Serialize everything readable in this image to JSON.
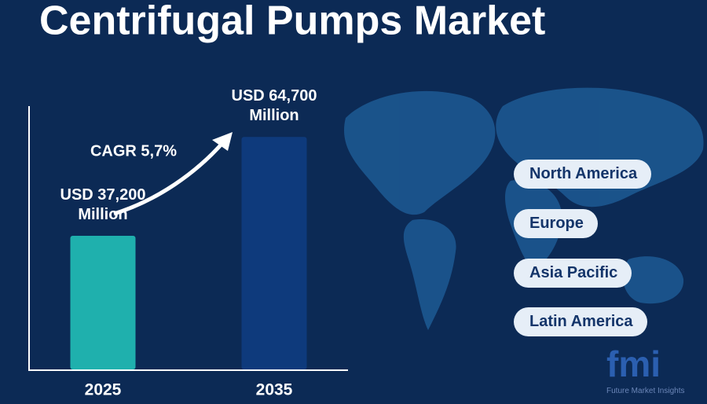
{
  "chart_data": {
    "type": "bar",
    "title": "Centrifugal Pumps Market",
    "categories": [
      "2025",
      "2035"
    ],
    "values": [
      37200,
      64700
    ],
    "value_labels": [
      "USD 37,200 Million",
      "USD 64,700 Million"
    ],
    "colors": [
      "#1fb0ad",
      "#0e3a7c"
    ],
    "ylim": [
      0,
      70000
    ],
    "annotation": "CAGR 5,7%"
  },
  "regions": [
    "North America",
    "Europe",
    "Asia Pacific",
    "Latin America"
  ],
  "logo": {
    "mark": "fmi",
    "name": "Future Market Insights"
  }
}
